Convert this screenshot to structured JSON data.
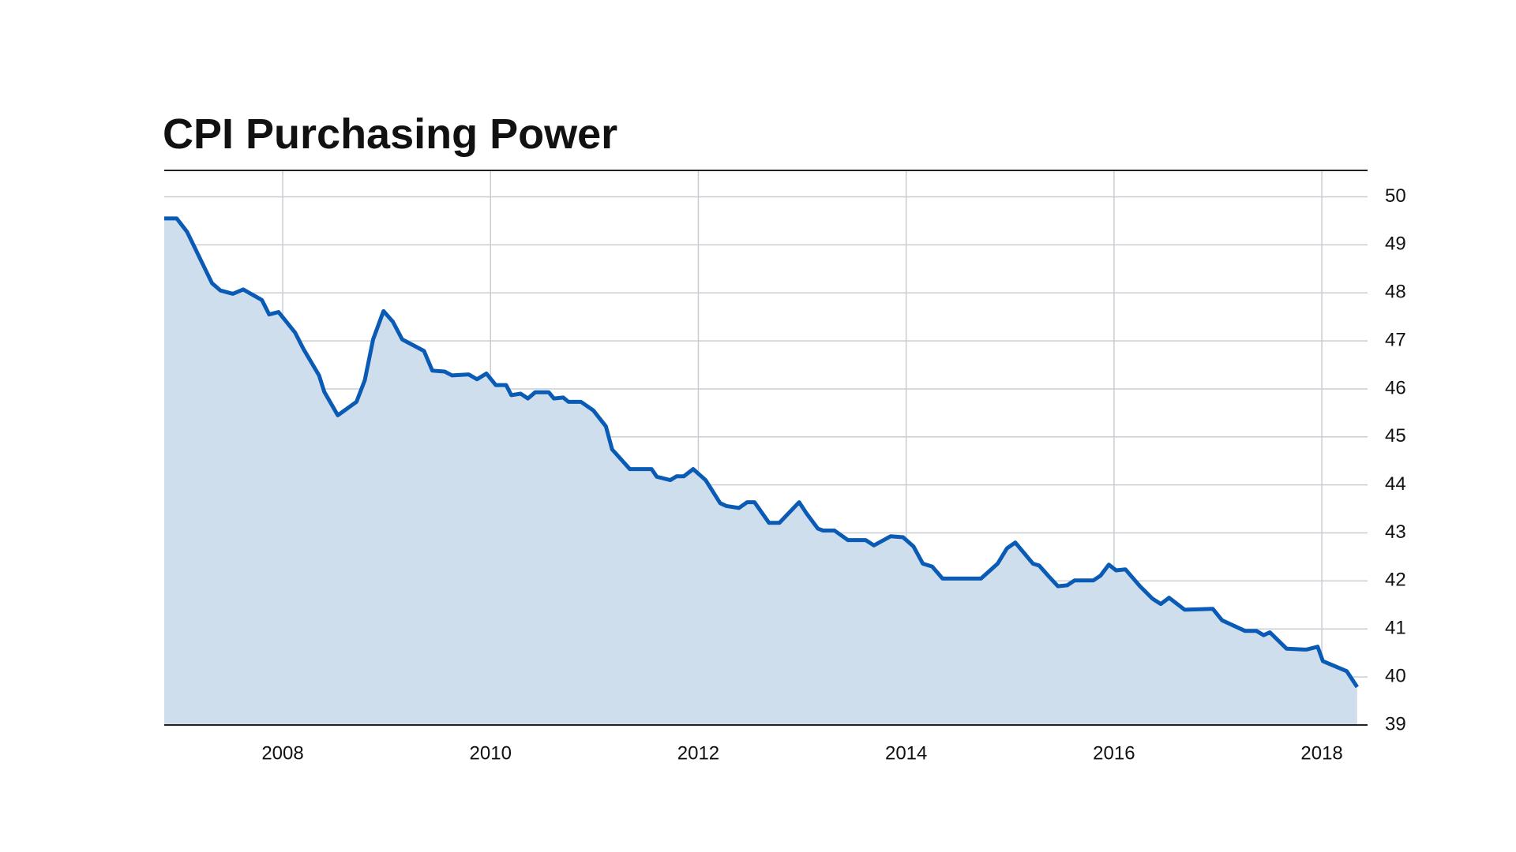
{
  "chart_data": {
    "type": "area",
    "title": "CPI Purchasing Power",
    "x": [
      2006.86,
      2006.98,
      2007.08,
      2007.32,
      2007.4,
      2007.52,
      2007.62,
      2007.8,
      2007.87,
      2007.96,
      2008.12,
      2008.2,
      2008.35,
      2008.4,
      2008.53,
      2008.71,
      2008.79,
      2008.87,
      2008.97,
      2009.06,
      2009.15,
      2009.36,
      2009.44,
      2009.56,
      2009.63,
      2009.79,
      2009.87,
      2009.96,
      2010.05,
      2010.15,
      2010.2,
      2010.29,
      2010.36,
      2010.43,
      2010.56,
      2010.61,
      2010.7,
      2010.75,
      2010.87,
      2010.99,
      2011.11,
      2011.17,
      2011.34,
      2011.55,
      2011.6,
      2011.73,
      2011.79,
      2011.86,
      2011.95,
      2012.07,
      2012.21,
      2012.27,
      2012.39,
      2012.47,
      2012.54,
      2012.68,
      2012.78,
      2012.97,
      2013.04,
      2013.15,
      2013.2,
      2013.31,
      2013.44,
      2013.61,
      2013.69,
      2013.85,
      2013.97,
      2014.07,
      2014.16,
      2014.25,
      2014.35,
      2014.72,
      2014.88,
      2014.97,
      2015.05,
      2015.22,
      2015.28,
      2015.37,
      2015.46,
      2015.55,
      2015.62,
      2015.8,
      2015.87,
      2015.95,
      2016.02,
      2016.11,
      2016.25,
      2016.37,
      2016.45,
      2016.53,
      2016.68,
      2016.95,
      2017.04,
      2017.26,
      2017.37,
      2017.44,
      2017.5,
      2017.66,
      2017.85,
      2017.96,
      2018.01,
      2018.24,
      2018.34
    ],
    "values": [
      49.55,
      49.55,
      49.27,
      48.2,
      48.05,
      47.98,
      48.07,
      47.85,
      47.55,
      47.6,
      47.17,
      46.83,
      46.28,
      45.94,
      45.45,
      45.73,
      46.18,
      47.03,
      47.62,
      47.4,
      47.03,
      46.79,
      46.38,
      46.36,
      46.28,
      46.3,
      46.2,
      46.32,
      46.08,
      46.08,
      45.87,
      45.9,
      45.8,
      45.93,
      45.93,
      45.8,
      45.82,
      45.73,
      45.73,
      45.55,
      45.22,
      44.74,
      44.33,
      44.33,
      44.17,
      44.1,
      44.18,
      44.18,
      44.33,
      44.1,
      43.62,
      43.56,
      43.52,
      43.64,
      43.64,
      43.21,
      43.21,
      43.64,
      43.41,
      43.09,
      43.05,
      43.05,
      42.85,
      42.85,
      42.74,
      42.93,
      42.91,
      42.72,
      42.36,
      42.3,
      42.05,
      42.05,
      42.36,
      42.68,
      42.8,
      42.36,
      42.32,
      42.1,
      41.89,
      41.91,
      42.01,
      42.01,
      42.11,
      42.34,
      42.22,
      42.24,
      41.89,
      41.63,
      41.52,
      41.65,
      41.4,
      41.42,
      41.18,
      40.96,
      40.96,
      40.87,
      40.93,
      40.59,
      40.57,
      40.63,
      40.33,
      40.12,
      39.79
    ],
    "color": "#0a5bb5",
    "fill_color": "#cfdeed",
    "xlim": [
      2006.86,
      2018.44
    ],
    "xticks": [
      2008,
      2010,
      2012,
      2014,
      2016,
      2018
    ],
    "ylim": [
      39,
      50.55
    ],
    "yticks": [
      39,
      40,
      41,
      42,
      43,
      44,
      45,
      46,
      47,
      48,
      49,
      50
    ],
    "grid": true,
    "y_axis_side": "right"
  }
}
